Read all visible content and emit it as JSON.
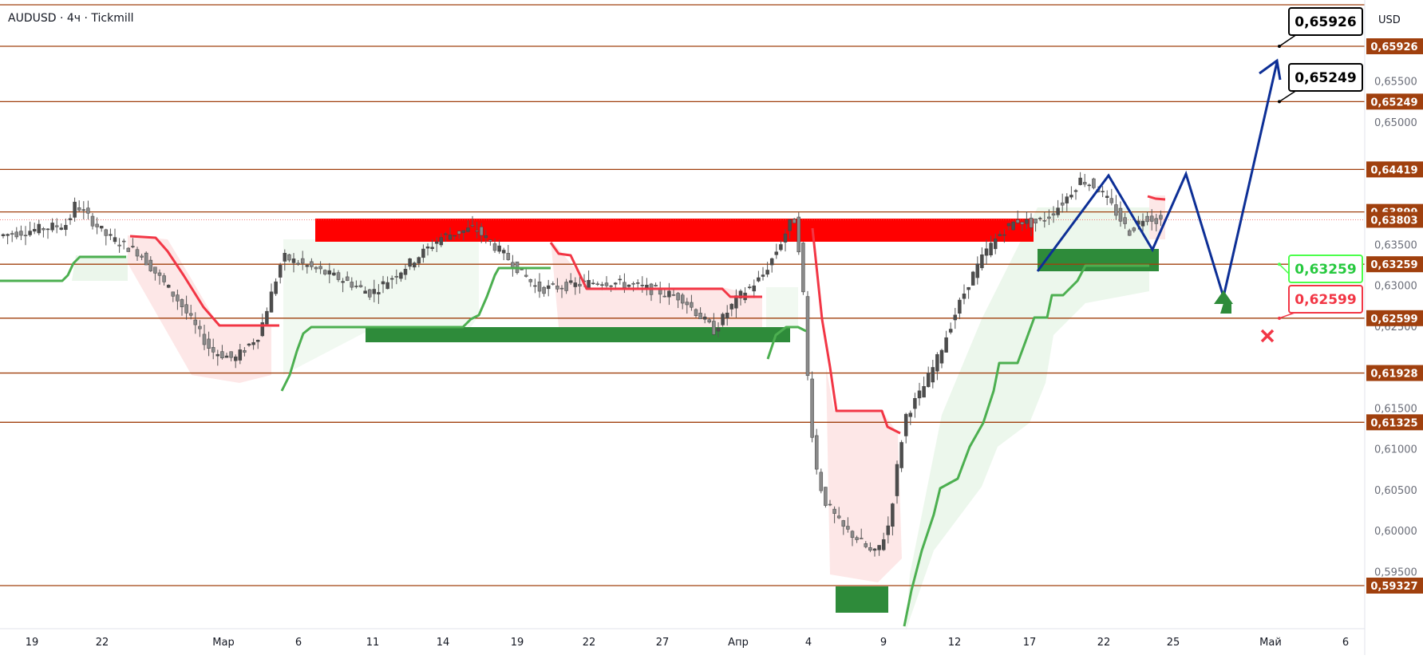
{
  "header": {
    "title": "AUDUSD · 4ч · Tickmill"
  },
  "chart_data": {
    "type": "candlestick",
    "symbol": "AUDUSD",
    "timeframe": "4ч",
    "broker": "Tickmill",
    "currency_label": "USD",
    "grid": false,
    "legend": "none",
    "ylim": [
      0.5885,
      0.6648
    ],
    "x_ticks": [
      "19",
      "22",
      "Мар",
      "6",
      "11",
      "14",
      "19",
      "22",
      "27",
      "Апр",
      "4",
      "9",
      "12",
      "17",
      "22",
      "25",
      "Май",
      "6"
    ],
    "y_ticks": [
      "0,65500",
      "0,65000",
      "0,63500",
      "0,63000",
      "0,62500",
      "0,61500",
      "0,61000",
      "0,60500",
      "0,60000",
      "0,59500"
    ],
    "y_tick_values": [
      0.655,
      0.65,
      0.635,
      0.63,
      0.625,
      0.615,
      0.61,
      0.605,
      0.6,
      0.595
    ],
    "levels": [
      {
        "value": 0.65926,
        "label": "0,65926"
      },
      {
        "value": 0.65249,
        "label": "0,65249"
      },
      {
        "value": 0.64419,
        "label": "0,64419"
      },
      {
        "value": 0.63899,
        "label": "0,63899"
      },
      {
        "value": 0.63259,
        "label": "0,63259"
      },
      {
        "value": 0.62599,
        "label": "0,62599"
      },
      {
        "value": 0.61928,
        "label": "0,61928"
      },
      {
        "value": 0.61325,
        "label": "0,61325"
      },
      {
        "value": 0.59327,
        "label": "0,59327"
      }
    ],
    "current_price": {
      "value": 0.63803,
      "label": "0,63803"
    },
    "targets": [
      {
        "value": 0.65926,
        "label": "0,65926"
      },
      {
        "value": 0.65249,
        "label": "0,65249"
      }
    ],
    "entry": {
      "value": 0.63259,
      "label": "0,63259"
    },
    "stop": {
      "value": 0.62599,
      "label": "0,62599"
    },
    "colors": {
      "level_line": "#a0400e",
      "level_badge": "#a0400e",
      "bull_candle": "#26a69a",
      "bear_candle": "#ef5350",
      "candle": "#3a3a3a",
      "trend_up": "#4caf50",
      "trend_down": "#f23645",
      "fill_up": "#e6f4e6",
      "fill_down": "#fde4e4",
      "zone_red": "#ff0000",
      "zone_green": "#2e8b3a",
      "forecast": "#0d2f96",
      "entry_green": "#4cff4c",
      "stop_red": "#f23645"
    }
  }
}
